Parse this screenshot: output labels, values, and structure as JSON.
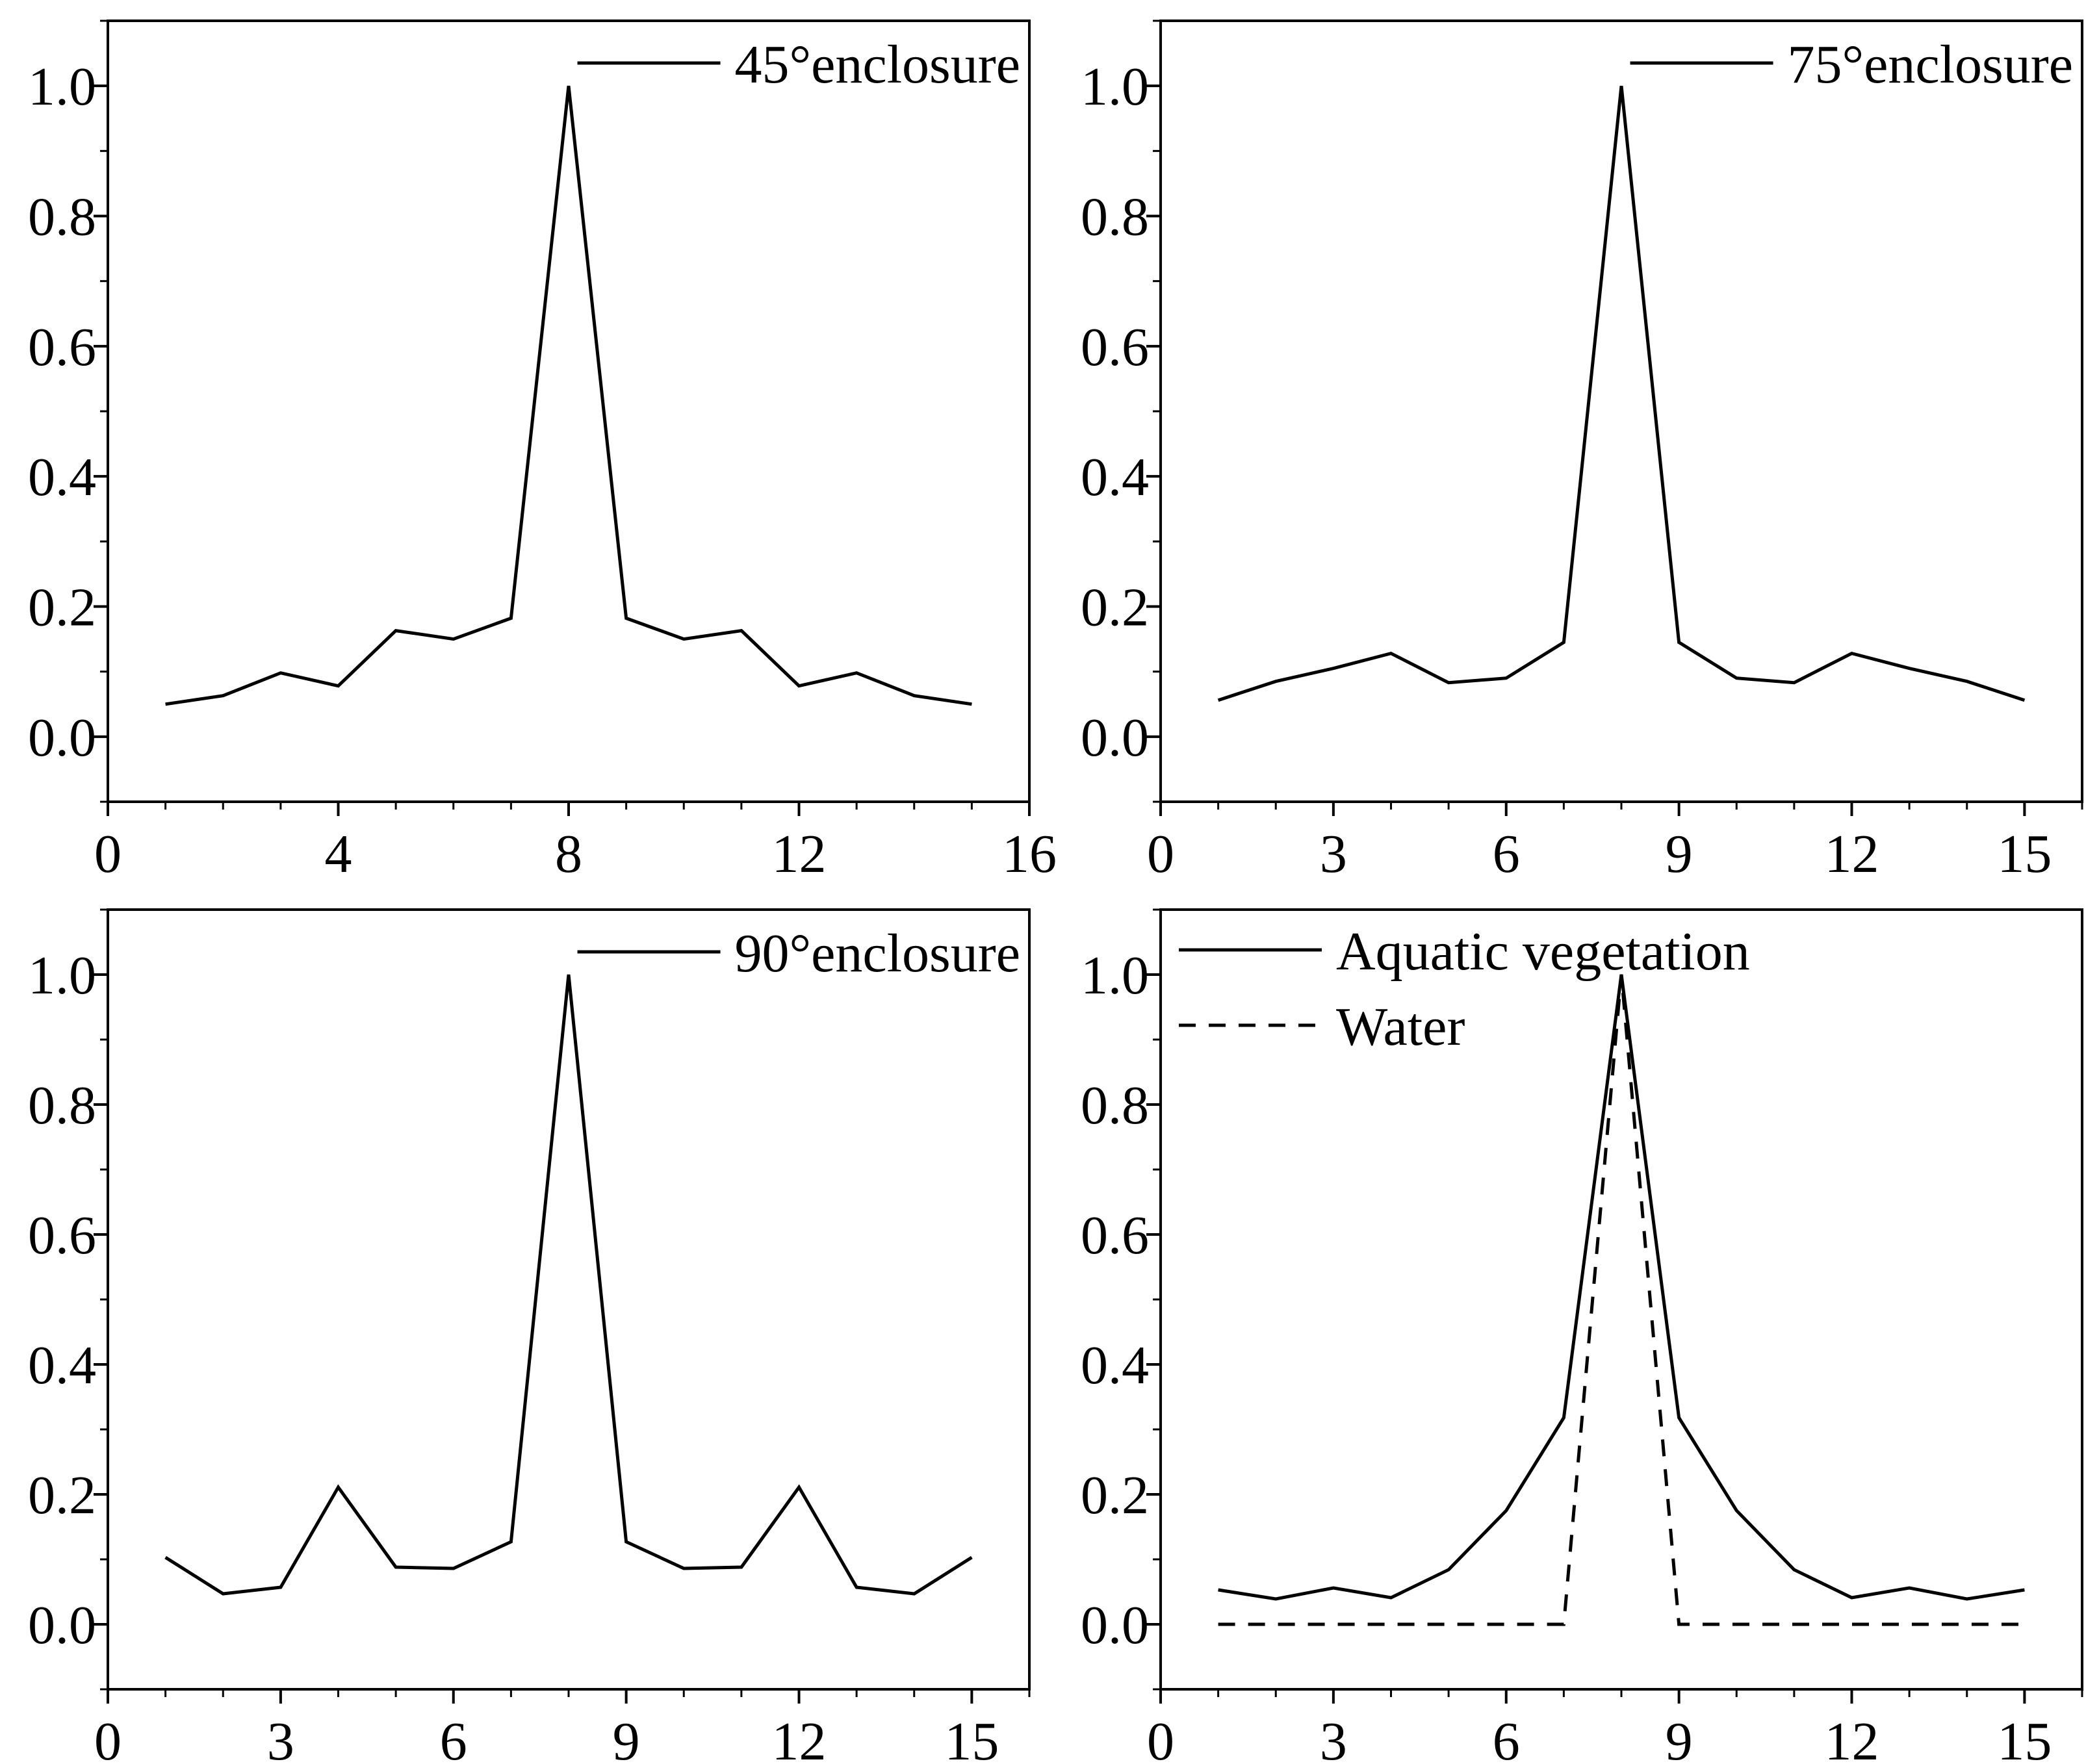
{
  "figure": {
    "panels": 4,
    "line_color": "#000000",
    "background": "#ffffff"
  },
  "chart_data": [
    {
      "type": "line",
      "title": "",
      "xlabel": "",
      "ylabel": "",
      "xlim": [
        0,
        16
      ],
      "ylim": [
        -0.1,
        1.1
      ],
      "xticks": [
        0,
        4,
        8,
        12,
        16
      ],
      "xtick_labels": [
        "0",
        "4",
        "8",
        "12",
        "16"
      ],
      "yticks": [
        0.0,
        0.2,
        0.4,
        0.6,
        0.8,
        1.0
      ],
      "ytick_labels": [
        "0.0",
        "0.2",
        "0.4",
        "0.6",
        "0.8",
        "1.0"
      ],
      "x": [
        1,
        2,
        3,
        4,
        5,
        6,
        7,
        8,
        9,
        10,
        11,
        12,
        13,
        14,
        15
      ],
      "series": [
        {
          "name": "45°enclosure",
          "style": "solid",
          "values": [
            0.05,
            0.063,
            0.098,
            0.078,
            0.163,
            0.15,
            0.182,
            1.0,
            0.182,
            0.15,
            0.163,
            0.078,
            0.098,
            0.063,
            0.05
          ]
        }
      ],
      "legend_position": "top-right"
    },
    {
      "type": "line",
      "title": "",
      "xlabel": "",
      "ylabel": "",
      "xlim": [
        0,
        16
      ],
      "ylim": [
        -0.1,
        1.1
      ],
      "xticks": [
        0,
        3,
        6,
        9,
        12,
        15
      ],
      "xtick_labels": [
        "0",
        "3",
        "6",
        "9",
        "12",
        "15"
      ],
      "yticks": [
        0.0,
        0.2,
        0.4,
        0.6,
        0.8,
        1.0
      ],
      "ytick_labels": [
        "0.0",
        "0.2",
        "0.4",
        "0.6",
        "0.8",
        "1.0"
      ],
      "x": [
        1,
        2,
        3,
        4,
        5,
        6,
        7,
        8,
        9,
        10,
        11,
        12,
        13,
        14,
        15
      ],
      "series": [
        {
          "name": "75°enclosure",
          "style": "solid",
          "values": [
            0.056,
            0.085,
            0.105,
            0.128,
            0.083,
            0.09,
            0.145,
            1.0,
            0.145,
            0.09,
            0.083,
            0.128,
            0.105,
            0.085,
            0.056
          ]
        }
      ],
      "legend_position": "top-right"
    },
    {
      "type": "line",
      "title": "",
      "xlabel": "",
      "ylabel": "",
      "xlim": [
        0,
        16
      ],
      "ylim": [
        -0.1,
        1.1
      ],
      "xticks": [
        0,
        3,
        6,
        9,
        12,
        15
      ],
      "xtick_labels": [
        "0",
        "3",
        "6",
        "9",
        "12",
        "15"
      ],
      "yticks": [
        0.0,
        0.2,
        0.4,
        0.6,
        0.8,
        1.0
      ],
      "ytick_labels": [
        "0.0",
        "0.2",
        "0.4",
        "0.6",
        "0.8",
        "1.0"
      ],
      "x": [
        1,
        2,
        3,
        4,
        5,
        6,
        7,
        8,
        9,
        10,
        11,
        12,
        13,
        14,
        15
      ],
      "series": [
        {
          "name": "90°enclosure",
          "style": "solid",
          "values": [
            0.103,
            0.047,
            0.057,
            0.211,
            0.088,
            0.086,
            0.127,
            1.0,
            0.127,
            0.086,
            0.088,
            0.211,
            0.057,
            0.047,
            0.103
          ]
        }
      ],
      "legend_position": "top-right"
    },
    {
      "type": "line",
      "title": "",
      "xlabel": "",
      "ylabel": "",
      "xlim": [
        0,
        16
      ],
      "ylim": [
        -0.1,
        1.1
      ],
      "xticks": [
        0,
        3,
        6,
        9,
        12,
        15
      ],
      "xtick_labels": [
        "0",
        "3",
        "6",
        "9",
        "12",
        "15"
      ],
      "yticks": [
        0.0,
        0.2,
        0.4,
        0.6,
        0.8,
        1.0
      ],
      "ytick_labels": [
        "0.0",
        "0.2",
        "0.4",
        "0.6",
        "0.8",
        "1.0"
      ],
      "x": [
        1,
        2,
        3,
        4,
        5,
        6,
        7,
        8,
        9,
        10,
        11,
        12,
        13,
        14,
        15
      ],
      "series": [
        {
          "name": "Aquatic vegetation",
          "style": "solid",
          "values": [
            0.053,
            0.039,
            0.056,
            0.041,
            0.084,
            0.175,
            0.318,
            1.0,
            0.318,
            0.175,
            0.084,
            0.041,
            0.056,
            0.039,
            0.053
          ]
        },
        {
          "name": "Water",
          "style": "dashed",
          "values": [
            0.0,
            0.0,
            0.0,
            0.0,
            0.0,
            0.0,
            0.0,
            1.0,
            0.0,
            0.0,
            0.0,
            0.0,
            0.0,
            0.0,
            0.0
          ]
        }
      ],
      "legend_position": "top-left"
    }
  ]
}
